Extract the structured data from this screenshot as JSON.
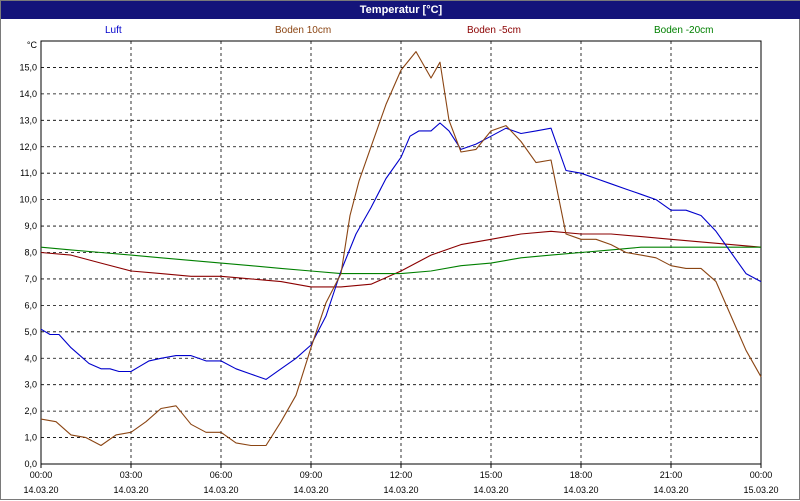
{
  "window": {
    "title": "Temperatur [°C]"
  },
  "legend": [
    {
      "name": "Luft",
      "color": "#0000cc"
    },
    {
      "name": "Boden 10cm",
      "color": "#8b4513"
    },
    {
      "name": "Boden -5cm",
      "color": "#8b0000"
    },
    {
      "name": "Boden -20cm",
      "color": "#008000"
    }
  ],
  "chart_data": {
    "type": "line",
    "title": "Temperatur [°C]",
    "ylabel": "°C",
    "ylim": [
      0,
      16
    ],
    "xlim": [
      0,
      24
    ],
    "grid": true,
    "legend_placement": "top",
    "yticks": [
      "0,0",
      "1,0",
      "2,0",
      "3,0",
      "4,0",
      "5,0",
      "6,0",
      "7,0",
      "8,0",
      "9,0",
      "10,0",
      "11,0",
      "12,0",
      "13,0",
      "14,0",
      "15,0"
    ],
    "xticks": [
      {
        "time": "00:00",
        "date": "14.03.20"
      },
      {
        "time": "03:00",
        "date": "14.03.20"
      },
      {
        "time": "06:00",
        "date": "14.03.20"
      },
      {
        "time": "09:00",
        "date": "14.03.20"
      },
      {
        "time": "12:00",
        "date": "14.03.20"
      },
      {
        "time": "15:00",
        "date": "14.03.20"
      },
      {
        "time": "18:00",
        "date": "14.03.20"
      },
      {
        "time": "21:00",
        "date": "14.03.20"
      },
      {
        "time": "00:00",
        "date": "15.03.20"
      }
    ],
    "x_unit": "hours since 14.03.20 00:00",
    "series": [
      {
        "name": "Luft",
        "color": "#0000cc",
        "x": [
          0,
          0.3,
          0.6,
          1,
          1.3,
          1.6,
          2,
          2.3,
          2.6,
          3,
          3.3,
          3.6,
          4,
          4.5,
          5,
          5.5,
          6,
          6.5,
          7,
          7.5,
          8,
          8.5,
          9,
          9.5,
          10,
          10.5,
          11,
          11.5,
          12,
          12.3,
          12.6,
          13,
          13.3,
          13.6,
          14,
          14.5,
          15,
          15.5,
          16,
          16.5,
          17,
          17.5,
          18,
          18.5,
          19,
          19.5,
          20,
          20.5,
          21,
          21.5,
          22,
          22.5,
          23,
          23.5,
          24
        ],
        "y": [
          5.1,
          4.9,
          4.9,
          4.4,
          4.1,
          3.8,
          3.6,
          3.6,
          3.5,
          3.5,
          3.7,
          3.9,
          4.0,
          4.1,
          4.1,
          3.9,
          3.9,
          3.6,
          3.4,
          3.2,
          3.6,
          4.0,
          4.5,
          5.6,
          7.3,
          8.7,
          9.7,
          10.8,
          11.6,
          12.4,
          12.6,
          12.6,
          12.9,
          12.6,
          11.9,
          12.1,
          12.4,
          12.7,
          12.5,
          12.6,
          12.7,
          11.1,
          11.0,
          10.8,
          10.6,
          10.4,
          10.2,
          10.0,
          9.6,
          9.6,
          9.4,
          8.8,
          8.0,
          7.2,
          6.9
        ]
      },
      {
        "name": "Boden 10cm",
        "color": "#8b4513",
        "x": [
          0,
          0.5,
          1,
          1.5,
          2,
          2.5,
          3,
          3.5,
          4,
          4.5,
          5,
          5.5,
          6,
          6.5,
          7,
          7.5,
          8,
          8.5,
          9,
          9.5,
          10,
          10.3,
          10.6,
          11,
          11.5,
          12,
          12.5,
          13,
          13.3,
          13.6,
          14,
          14.5,
          15,
          15.5,
          16,
          16.5,
          17,
          17.5,
          18,
          18.5,
          19,
          19.5,
          20,
          20.5,
          21,
          21.5,
          22,
          22.5,
          23,
          23.5,
          24
        ],
        "y": [
          1.7,
          1.6,
          1.1,
          1.0,
          0.7,
          1.1,
          1.2,
          1.6,
          2.1,
          2.2,
          1.5,
          1.2,
          1.2,
          0.8,
          0.7,
          0.7,
          1.6,
          2.6,
          4.4,
          6.1,
          7.2,
          9.4,
          10.7,
          12.0,
          13.6,
          14.9,
          15.6,
          14.6,
          15.2,
          13.0,
          11.8,
          11.9,
          12.6,
          12.8,
          12.2,
          11.4,
          11.5,
          8.7,
          8.5,
          8.5,
          8.3,
          8.0,
          7.9,
          7.8,
          7.5,
          7.4,
          7.4,
          6.9,
          5.6,
          4.3,
          3.3
        ]
      },
      {
        "name": "Boden -5cm",
        "color": "#8b0000",
        "x": [
          0,
          1,
          2,
          3,
          4,
          5,
          6,
          7,
          8,
          9,
          10,
          11,
          12,
          13,
          14,
          15,
          16,
          17,
          18,
          19,
          20,
          21,
          22,
          23,
          24
        ],
        "y": [
          8.0,
          7.9,
          7.6,
          7.3,
          7.2,
          7.1,
          7.1,
          7.0,
          6.9,
          6.7,
          6.7,
          6.8,
          7.3,
          7.9,
          8.3,
          8.5,
          8.7,
          8.8,
          8.7,
          8.7,
          8.6,
          8.5,
          8.4,
          8.3,
          8.2
        ]
      },
      {
        "name": "Boden -20cm",
        "color": "#008000",
        "x": [
          0,
          1,
          2,
          3,
          4,
          5,
          6,
          7,
          8,
          9,
          10,
          11,
          12,
          13,
          14,
          15,
          16,
          17,
          18,
          19,
          20,
          21,
          22,
          23,
          24
        ],
        "y": [
          8.2,
          8.1,
          8.0,
          7.9,
          7.8,
          7.7,
          7.6,
          7.5,
          7.4,
          7.3,
          7.2,
          7.2,
          7.2,
          7.3,
          7.5,
          7.6,
          7.8,
          7.9,
          8.0,
          8.1,
          8.2,
          8.2,
          8.2,
          8.2,
          8.2
        ]
      }
    ]
  }
}
